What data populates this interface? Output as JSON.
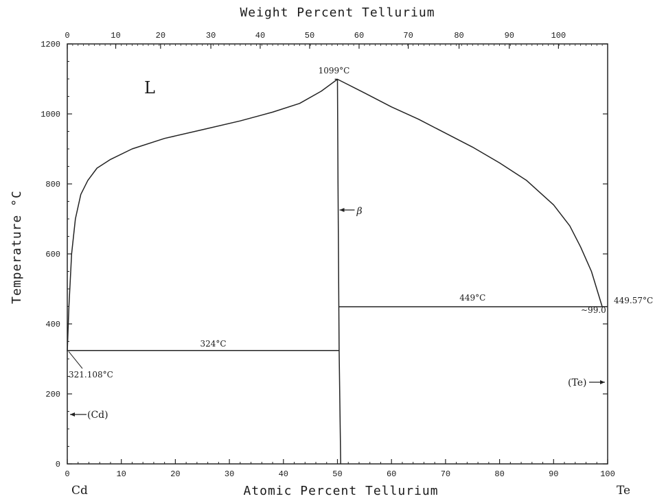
{
  "chart_data": {
    "type": "line",
    "title": "",
    "xlabel": "Atomic Percent Tellurium",
    "x2label": "Weight Percent Tellurium",
    "ylabel": "Temperature °C",
    "xlim": [
      0,
      100
    ],
    "ylim": [
      0,
      1200
    ],
    "x_ticks": [
      "0",
      "10",
      "20",
      "30",
      "40",
      "50",
      "60",
      "70",
      "80",
      "90",
      "100"
    ],
    "x2_ticks": [
      "0",
      "10",
      "20",
      "30",
      "40",
      "50",
      "60",
      "70",
      "80",
      "90",
      "100"
    ],
    "y_ticks": [
      "0",
      "200",
      "400",
      "600",
      "800",
      "1000",
      "1200"
    ],
    "x2_tick_positions_at_pct": [
      0,
      8.96,
      17.26,
      26.57,
      35.7,
      44.85,
      54.0,
      63.1,
      72.5,
      81.8,
      90.9,
      100
    ],
    "series": [
      {
        "name": "",
        "x": [
          0,
          0.3,
          0.8,
          1.5,
          2.5,
          3.8,
          5.5,
          8,
          12,
          18,
          25,
          32,
          38,
          43,
          47,
          50
        ],
        "y": [
          321.108,
          450,
          600,
          700,
          770,
          810,
          845,
          870,
          900,
          930,
          955,
          980,
          1005,
          1030,
          1065,
          1099
        ]
      },
      {
        "name": "",
        "x": [
          50,
          55,
          60,
          65,
          70,
          75,
          80,
          85,
          90,
          93,
          95,
          97,
          99
        ],
        "y": [
          1099,
          1060,
          1020,
          985,
          945,
          905,
          860,
          810,
          740,
          680,
          620,
          550,
          449
        ]
      },
      {
        "name": "",
        "x": [
          49.5,
          50,
          50.1,
          50.3,
          50.6
        ],
        "y": [
          1099,
          1099,
          800,
          330,
          0
        ]
      },
      {
        "name": "",
        "x": [
          0,
          50.3
        ],
        "y": [
          324,
          324
        ]
      },
      {
        "name": "",
        "x": [
          50.3,
          99.0,
          100
        ],
        "y": [
          449,
          449,
          449.57
        ]
      }
    ],
    "labels": {
      "liquid": "L",
      "beta": "β",
      "eutectic_right_temp": "449°C",
      "eutectic_left_temp": "324°C",
      "max_temp": "1099°C",
      "cd_melt": "321.108°C",
      "te_melt": "449.57°C",
      "te_comp": "~99.0",
      "cd_phase": "(Cd)",
      "te_phase": "(Te)",
      "cd_symbol": "Cd",
      "te_symbol": "Te"
    },
    "grid": false
  }
}
